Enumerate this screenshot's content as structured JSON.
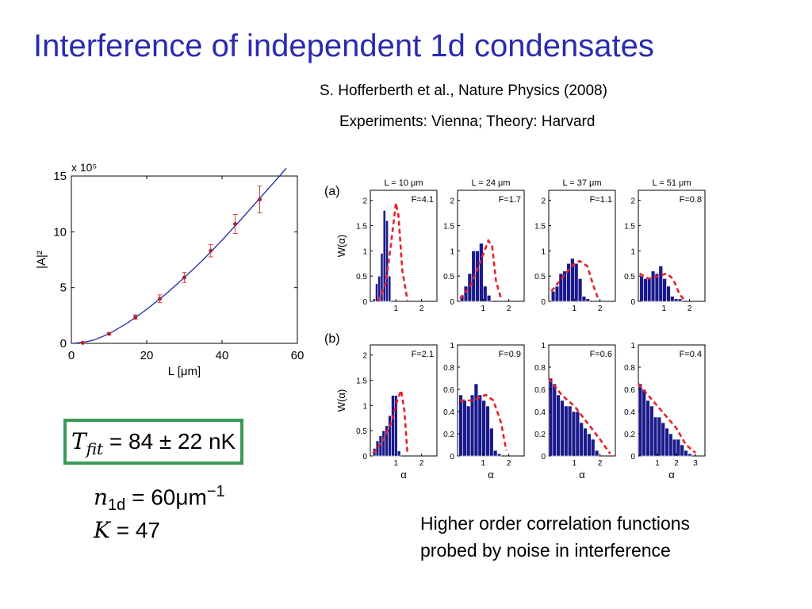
{
  "title": "Interference of independent 1d condensates",
  "reference": "S. Hofferberth et al., Nature Physics (2008)",
  "experiments": "Experiments: Vienna; Theory: Harvard",
  "equations": {
    "tfit_symbol": "T",
    "tfit_sub": "fit",
    "tfit_value": "= 84 ± 22 nK",
    "n1d_symbol": "n",
    "n1d_sub": "1d",
    "n1d_value": "= 60μm",
    "n1d_exp": "−1",
    "k_symbol": "K",
    "k_value": "= 47"
  },
  "caption_lines": [
    "Higher order correlation functions",
    "probed by noise in interference"
  ],
  "colors": {
    "title": "#2b2bb0",
    "bar": "#1a1a8c",
    "fit": "#e8202a",
    "curve": "#1a2aa0",
    "box": "#3a9a5a"
  },
  "chart_data": [
    {
      "type": "scatter",
      "xlabel": "L [μm]",
      "ylabel": "|A|²",
      "yscale_label": "x 10⁵",
      "xlim": [
        0,
        60
      ],
      "ylim": [
        0,
        15
      ],
      "xticks": [
        0,
        20,
        40,
        60
      ],
      "yticks": [
        0,
        5,
        10,
        15
      ],
      "points": [
        {
          "x": 3,
          "y": 0.05,
          "err": 0.05
        },
        {
          "x": 10,
          "y": 0.85,
          "err": 0.1
        },
        {
          "x": 17,
          "y": 2.35,
          "err": 0.2
        },
        {
          "x": 23.5,
          "y": 4.0,
          "err": 0.35
        },
        {
          "x": 30,
          "y": 5.9,
          "err": 0.45
        },
        {
          "x": 37,
          "y": 8.3,
          "err": 0.55
        },
        {
          "x": 43.5,
          "y": 10.7,
          "err": 0.85
        },
        {
          "x": 50,
          "y": 12.9,
          "err": 1.2
        }
      ],
      "fit_curve": [
        {
          "x": 0,
          "y": 0
        },
        {
          "x": 3,
          "y": 0.08
        },
        {
          "x": 6,
          "y": 0.3
        },
        {
          "x": 10,
          "y": 0.85
        },
        {
          "x": 15,
          "y": 1.85
        },
        {
          "x": 20,
          "y": 3.05
        },
        {
          "x": 25,
          "y": 4.4
        },
        {
          "x": 30,
          "y": 5.9
        },
        {
          "x": 35,
          "y": 7.5
        },
        {
          "x": 40,
          "y": 9.25
        },
        {
          "x": 45,
          "y": 11.1
        },
        {
          "x": 50,
          "y": 13.0
        },
        {
          "x": 55,
          "y": 14.9
        },
        {
          "x": 57,
          "y": 15.7
        }
      ]
    },
    {
      "type": "bar",
      "panel_labels": [
        "(a)",
        "(b)"
      ],
      "ylabel": "W(α)",
      "xlabel": "α",
      "panels": [
        {
          "row": 0,
          "col": 0,
          "header": "L = 10 μm",
          "label": "F=4.1",
          "ylim": [
            0,
            2.2
          ],
          "yticks": [
            0,
            0.5,
            1,
            1.5,
            2
          ],
          "xlim": [
            0,
            2.6
          ],
          "xticks": [
            1,
            2
          ],
          "bin_start": 0.1,
          "bin_width": 0.1,
          "bars": [
            0.05,
            0.35,
            0.5,
            0.95,
            1.8,
            1.6,
            0.5
          ],
          "fit": [
            {
              "x": 0.3,
              "y": 0
            },
            {
              "x": 0.6,
              "y": 0.35
            },
            {
              "x": 0.8,
              "y": 1.1
            },
            {
              "x": 1.0,
              "y": 1.95
            },
            {
              "x": 1.1,
              "y": 1.7
            },
            {
              "x": 1.25,
              "y": 0.6
            },
            {
              "x": 1.45,
              "y": 0.02
            }
          ]
        },
        {
          "row": 0,
          "col": 1,
          "header": "L = 24 μm",
          "label": "F=1.7",
          "ylim": [
            0,
            2.2
          ],
          "yticks": [
            0,
            0.5,
            1,
            1.5,
            2
          ],
          "xlim": [
            0,
            2.6
          ],
          "xticks": [
            1,
            2
          ],
          "bin_start": 0.1,
          "bin_width": 0.15,
          "bars": [
            0.12,
            0.3,
            0.55,
            1.0,
            1.0,
            1.15,
            0.3,
            0.12
          ],
          "fit": [
            {
              "x": 0.1,
              "y": 0.05
            },
            {
              "x": 0.5,
              "y": 0.3
            },
            {
              "x": 0.9,
              "y": 0.8
            },
            {
              "x": 1.2,
              "y": 1.2
            },
            {
              "x": 1.35,
              "y": 1.1
            },
            {
              "x": 1.5,
              "y": 0.4
            },
            {
              "x": 1.7,
              "y": 0.05
            }
          ]
        },
        {
          "row": 0,
          "col": 2,
          "header": "L = 37 μm",
          "label": "F=1.1",
          "ylim": [
            0,
            2.2
          ],
          "yticks": [
            0,
            0.5,
            1,
            1.5,
            2
          ],
          "xlim": [
            0,
            2.6
          ],
          "xticks": [
            1,
            2
          ],
          "bin_start": 0.1,
          "bin_width": 0.15,
          "bars": [
            0.2,
            0.3,
            0.55,
            0.6,
            0.75,
            0.85,
            0.75,
            0.45,
            0.1,
            0.05
          ],
          "fit": [
            {
              "x": 0.1,
              "y": 0.2
            },
            {
              "x": 0.5,
              "y": 0.45
            },
            {
              "x": 0.9,
              "y": 0.7
            },
            {
              "x": 1.2,
              "y": 0.8
            },
            {
              "x": 1.5,
              "y": 0.7
            },
            {
              "x": 1.75,
              "y": 0.3
            },
            {
              "x": 1.95,
              "y": 0.02
            }
          ]
        },
        {
          "row": 0,
          "col": 3,
          "header": "L = 51 μm",
          "label": "F=0.8",
          "ylim": [
            0,
            2.2
          ],
          "yticks": [
            0,
            0.5,
            1,
            1.5,
            2
          ],
          "xlim": [
            0,
            2.6
          ],
          "xticks": [
            1,
            2
          ],
          "bin_start": 0.05,
          "bin_width": 0.15,
          "bars": [
            0.5,
            0.45,
            0.45,
            0.6,
            0.55,
            0.7,
            0.45,
            0.3,
            0.1,
            0.05,
            0.05
          ],
          "fit": [
            {
              "x": 0.05,
              "y": 0.55
            },
            {
              "x": 0.4,
              "y": 0.45
            },
            {
              "x": 0.8,
              "y": 0.5
            },
            {
              "x": 1.1,
              "y": 0.55
            },
            {
              "x": 1.35,
              "y": 0.45
            },
            {
              "x": 1.6,
              "y": 0.15
            },
            {
              "x": 1.8,
              "y": 0.02
            }
          ]
        },
        {
          "row": 1,
          "col": 0,
          "header": "",
          "label": "F=2.1",
          "ylim": [
            0,
            2.2
          ],
          "yticks": [
            0,
            0.5,
            1,
            1.5,
            2
          ],
          "xlim": [
            0,
            2.6
          ],
          "xticks": [
            1,
            2
          ],
          "bin_start": 0.1,
          "bin_width": 0.12,
          "bars": [
            0.15,
            0.3,
            0.4,
            0.5,
            0.6,
            0.8,
            1.2,
            1.2,
            0.1
          ],
          "fit": [
            {
              "x": 0.1,
              "y": 0.05
            },
            {
              "x": 0.5,
              "y": 0.3
            },
            {
              "x": 0.85,
              "y": 0.7
            },
            {
              "x": 1.05,
              "y": 1.1
            },
            {
              "x": 1.2,
              "y": 1.3
            },
            {
              "x": 1.33,
              "y": 0.9
            },
            {
              "x": 1.45,
              "y": 0.05
            }
          ]
        },
        {
          "row": 1,
          "col": 1,
          "header": "",
          "label": "F=0.9",
          "ylim": [
            0,
            1
          ],
          "yticks": [
            0,
            0.2,
            0.4,
            0.6,
            0.8,
            1
          ],
          "xlim": [
            0,
            2.6
          ],
          "xticks": [
            1,
            2
          ],
          "bin_start": 0.05,
          "bin_width": 0.15,
          "bars": [
            0.55,
            0.5,
            0.45,
            0.55,
            0.65,
            0.55,
            0.5,
            0.45,
            0.25,
            0.05,
            0.02
          ],
          "fit": [
            {
              "x": 0.1,
              "y": 0.5
            },
            {
              "x": 0.6,
              "y": 0.5
            },
            {
              "x": 1.1,
              "y": 0.55
            },
            {
              "x": 1.4,
              "y": 0.5
            },
            {
              "x": 1.7,
              "y": 0.3
            },
            {
              "x": 1.9,
              "y": 0.05
            }
          ]
        },
        {
          "row": 1,
          "col": 2,
          "header": "",
          "label": "F=0.6",
          "ylim": [
            0,
            1
          ],
          "yticks": [
            0,
            0.2,
            0.4,
            0.6,
            0.8,
            1
          ],
          "xlim": [
            0,
            2.6
          ],
          "xticks": [
            1,
            2
          ],
          "bin_start": 0.0,
          "bin_width": 0.15,
          "bars": [
            0.7,
            0.65,
            0.55,
            0.5,
            0.45,
            0.45,
            0.4,
            0.4,
            0.3,
            0.25,
            0.2,
            0.15,
            0.05
          ],
          "fit": [
            {
              "x": 0,
              "y": 0.7
            },
            {
              "x": 0.5,
              "y": 0.55
            },
            {
              "x": 1.0,
              "y": 0.45
            },
            {
              "x": 1.5,
              "y": 0.3
            },
            {
              "x": 2.0,
              "y": 0.15
            },
            {
              "x": 2.4,
              "y": 0.02
            }
          ]
        },
        {
          "row": 1,
          "col": 3,
          "header": "",
          "label": "F=0.4",
          "ylim": [
            0,
            1
          ],
          "yticks": [
            0,
            0.2,
            0.4,
            0.6,
            0.8,
            1
          ],
          "xlim": [
            0,
            3.5
          ],
          "xticks": [
            1,
            2,
            3
          ],
          "bin_start": 0.0,
          "bin_width": 0.2,
          "bars": [
            0.65,
            0.6,
            0.5,
            0.45,
            0.35,
            0.35,
            0.3,
            0.25,
            0.2,
            0.15,
            0.15,
            0.1,
            0.05,
            0.02
          ],
          "fit": [
            {
              "x": 0,
              "y": 0.65
            },
            {
              "x": 0.5,
              "y": 0.55
            },
            {
              "x": 1.0,
              "y": 0.45
            },
            {
              "x": 1.5,
              "y": 0.35
            },
            {
              "x": 2.0,
              "y": 0.25
            },
            {
              "x": 2.5,
              "y": 0.1
            },
            {
              "x": 3.0,
              "y": 0.03
            }
          ]
        }
      ]
    }
  ]
}
